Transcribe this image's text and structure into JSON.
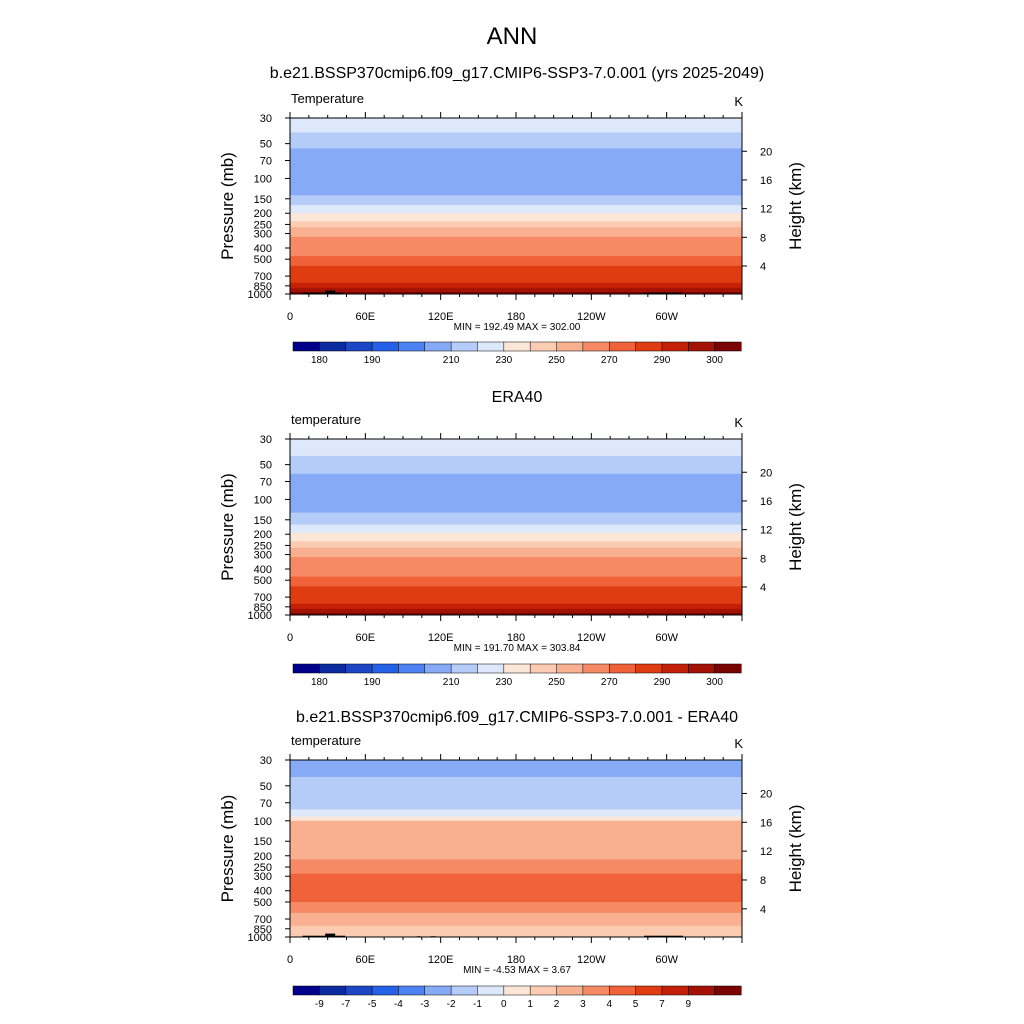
{
  "figure": {
    "title": "ANN"
  },
  "colors": {
    "temp_scale": [
      "#00008a",
      "#0a2a9e",
      "#1c46c4",
      "#2560e8",
      "#4d82f2",
      "#86aaf5",
      "#b5cbf8",
      "#dde9fb",
      "#fbe6d7",
      "#fbccb2",
      "#f8b090",
      "#f58a64",
      "#f0623a",
      "#e03c12",
      "#c42008",
      "#a31205",
      "#7a0402"
    ],
    "diff_scale": [
      "#00008a",
      "#0a2a9e",
      "#1c46c4",
      "#2560e8",
      "#4d82f2",
      "#86aaf5",
      "#b5cbf8",
      "#dde9fb",
      "#fbe6d7",
      "#fbccb2",
      "#f8b090",
      "#f58a64",
      "#f0623a",
      "#e03c12",
      "#c42008",
      "#a31205",
      "#7a0402"
    ],
    "terrain": "#000000"
  },
  "chart_data": [
    {
      "type": "heatmap",
      "title": "b.e21.BSSP370cmip6.f09_g17.CMIP6-SSP3-7.0.001 (yrs 2025-2049)",
      "field_label": "Temperature",
      "units": "K",
      "ylabel": "Pressure (mb)",
      "ylabel_right": "Height (km)",
      "x_ticks": [
        "0",
        "60E",
        "120E",
        "180",
        "120W",
        "60W"
      ],
      "x_tick_lon": [
        0,
        60,
        120,
        180,
        240,
        300
      ],
      "xlim": [
        0,
        360
      ],
      "y_ticks": [
        "30",
        "50",
        "70",
        "100",
        "150",
        "200",
        "250",
        "300",
        "400",
        "500",
        "700",
        "850",
        "1000"
      ],
      "y_tick_p": [
        30,
        50,
        70,
        100,
        150,
        200,
        250,
        300,
        400,
        500,
        700,
        850,
        1000
      ],
      "ylim": [
        1000,
        30
      ],
      "y_scale": "log",
      "height_ticks": [
        "4",
        "8",
        "12",
        "16",
        "20"
      ],
      "height_km": [
        4,
        8,
        12,
        16,
        20
      ],
      "stats": "MIN = 192.49  MAX = 302.00",
      "min": 192.49,
      "max": 302.0,
      "colorbar_labels": [
        "180",
        "190",
        "210",
        "230",
        "250",
        "270",
        "290",
        "300"
      ],
      "layers": [
        {
          "p_top": 30,
          "p_bot": 40,
          "value": 215
        },
        {
          "p_top": 40,
          "p_bot": 55,
          "value": 208
        },
        {
          "p_top": 55,
          "p_bot": 140,
          "value": 200
        },
        {
          "p_top": 140,
          "p_bot": 170,
          "value": 208
        },
        {
          "p_top": 170,
          "p_bot": 200,
          "value": 215
        },
        {
          "p_top": 200,
          "p_bot": 235,
          "value": 222
        },
        {
          "p_top": 235,
          "p_bot": 265,
          "value": 232
        },
        {
          "p_top": 265,
          "p_bot": 320,
          "value": 245
        },
        {
          "p_top": 320,
          "p_bot": 390,
          "value": 252
        },
        {
          "p_top": 390,
          "p_bot": 470,
          "value": 258
        },
        {
          "p_top": 470,
          "p_bot": 570,
          "value": 265
        },
        {
          "p_top": 570,
          "p_bot": 690,
          "value": 272
        },
        {
          "p_top": 690,
          "p_bot": 800,
          "value": 278
        },
        {
          "p_top": 800,
          "p_bot": 890,
          "value": 285
        },
        {
          "p_top": 890,
          "p_bot": 960,
          "value": 292
        },
        {
          "p_top": 960,
          "p_bot": 1000,
          "value": 296
        }
      ],
      "terrain": [
        {
          "lon0": 10,
          "lon1": 42,
          "p": 975
        },
        {
          "lon0": 28,
          "lon1": 36,
          "p": 935
        },
        {
          "lon0": 101,
          "lon1": 104,
          "p": 985
        },
        {
          "lon0": 112,
          "lon1": 116,
          "p": 990
        },
        {
          "lon0": 282,
          "lon1": 312,
          "p": 975
        }
      ]
    },
    {
      "type": "heatmap",
      "title": "ERA40",
      "field_label": "temperature",
      "units": "K",
      "ylabel": "Pressure (mb)",
      "ylabel_right": "Height (km)",
      "x_ticks": [
        "0",
        "60E",
        "120E",
        "180",
        "120W",
        "60W"
      ],
      "x_tick_lon": [
        0,
        60,
        120,
        180,
        240,
        300
      ],
      "xlim": [
        0,
        360
      ],
      "y_ticks": [
        "30",
        "50",
        "70",
        "100",
        "150",
        "200",
        "250",
        "300",
        "400",
        "500",
        "700",
        "850",
        "1000"
      ],
      "y_tick_p": [
        30,
        50,
        70,
        100,
        150,
        200,
        250,
        300,
        400,
        500,
        700,
        850,
        1000
      ],
      "ylim": [
        1000,
        30
      ],
      "y_scale": "log",
      "height_ticks": [
        "4",
        "8",
        "12",
        "16",
        "20"
      ],
      "height_km": [
        4,
        8,
        12,
        16,
        20
      ],
      "stats": "MIN = 191.70  MAX = 303.84",
      "min": 191.7,
      "max": 303.84,
      "colorbar_labels": [
        "180",
        "190",
        "210",
        "230",
        "250",
        "270",
        "290",
        "300"
      ],
      "layers": [
        {
          "p_top": 30,
          "p_bot": 42,
          "value": 215
        },
        {
          "p_top": 42,
          "p_bot": 60,
          "value": 208
        },
        {
          "p_top": 60,
          "p_bot": 130,
          "value": 200
        },
        {
          "p_top": 130,
          "p_bot": 165,
          "value": 208
        },
        {
          "p_top": 165,
          "p_bot": 195,
          "value": 215
        },
        {
          "p_top": 195,
          "p_bot": 230,
          "value": 222
        },
        {
          "p_top": 230,
          "p_bot": 262,
          "value": 232
        },
        {
          "p_top": 262,
          "p_bot": 315,
          "value": 245
        },
        {
          "p_top": 315,
          "p_bot": 385,
          "value": 252
        },
        {
          "p_top": 385,
          "p_bot": 465,
          "value": 258
        },
        {
          "p_top": 465,
          "p_bot": 565,
          "value": 265
        },
        {
          "p_top": 565,
          "p_bot": 685,
          "value": 272
        },
        {
          "p_top": 685,
          "p_bot": 800,
          "value": 278
        },
        {
          "p_top": 800,
          "p_bot": 885,
          "value": 285
        },
        {
          "p_top": 885,
          "p_bot": 960,
          "value": 292
        },
        {
          "p_top": 960,
          "p_bot": 1000,
          "value": 296
        }
      ],
      "terrain": []
    },
    {
      "type": "heatmap",
      "title": "b.e21.BSSP370cmip6.f09_g17.CMIP6-SSP3-7.0.001 - ERA40",
      "field_label": "temperature",
      "units": "K",
      "ylabel": "Pressure (mb)",
      "ylabel_right": "Height (km)",
      "x_ticks": [
        "0",
        "60E",
        "120E",
        "180",
        "120W",
        "60W"
      ],
      "x_tick_lon": [
        0,
        60,
        120,
        180,
        240,
        300
      ],
      "xlim": [
        0,
        360
      ],
      "y_ticks": [
        "30",
        "50",
        "70",
        "100",
        "150",
        "200",
        "250",
        "300",
        "400",
        "500",
        "700",
        "850",
        "1000"
      ],
      "y_tick_p": [
        30,
        50,
        70,
        100,
        150,
        200,
        250,
        300,
        400,
        500,
        700,
        850,
        1000
      ],
      "ylim": [
        1000,
        30
      ],
      "y_scale": "log",
      "height_ticks": [
        "4",
        "8",
        "12",
        "16",
        "20"
      ],
      "height_km": [
        4,
        8,
        12,
        16,
        20
      ],
      "stats": "MIN = -4.53  MAX =   3.67",
      "min": -4.53,
      "max": 3.67,
      "colorbar_labels": [
        "-9",
        "-7",
        "-5",
        "-4",
        "-3",
        "-2",
        "-1",
        "0",
        "1",
        "2",
        "3",
        "4",
        "5",
        "7",
        "9"
      ],
      "layers": [
        {
          "p_top": 30,
          "p_bot": 42,
          "value": -3.5
        },
        {
          "p_top": 42,
          "p_bot": 80,
          "value": -2.5
        },
        {
          "p_top": 80,
          "p_bot": 92,
          "value": -1.5
        },
        {
          "p_top": 92,
          "p_bot": 100,
          "value": -0.5
        },
        {
          "p_top": 100,
          "p_bot": 215,
          "value": 1.5
        },
        {
          "p_top": 215,
          "p_bot": 285,
          "value": 2.5
        },
        {
          "p_top": 285,
          "p_bot": 500,
          "value": 3.5
        },
        {
          "p_top": 500,
          "p_bot": 620,
          "value": 2.5
        },
        {
          "p_top": 620,
          "p_bot": 800,
          "value": 1.5
        },
        {
          "p_top": 800,
          "p_bot": 1000,
          "value": 0.5
        }
      ],
      "terrain": [
        {
          "lon0": 10,
          "lon1": 44,
          "p": 975
        },
        {
          "lon0": 28,
          "lon1": 36,
          "p": 935
        },
        {
          "lon0": 101,
          "lon1": 104,
          "p": 985
        },
        {
          "lon0": 112,
          "lon1": 116,
          "p": 985
        },
        {
          "lon0": 282,
          "lon1": 313,
          "p": 975
        }
      ]
    }
  ]
}
